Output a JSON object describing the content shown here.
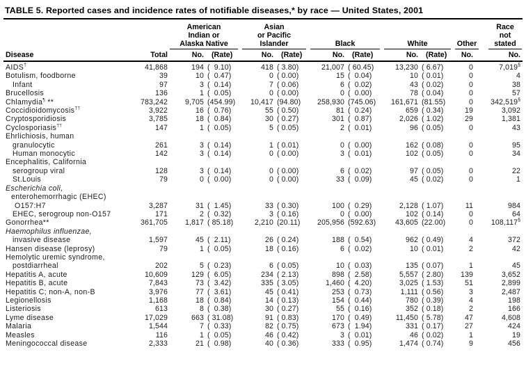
{
  "title": "TABLE 5. Reported cases and incidence rates of notifiable diseases,* by race — United States, 2001",
  "columns": {
    "disease": "Disease",
    "total": "Total",
    "groups": [
      {
        "id": "american-indian-or-alaska-native",
        "lines": [
          "American",
          "Indian or",
          "Alaska Native"
        ],
        "sub": [
          "No.",
          "(Rate)"
        ]
      },
      {
        "id": "asian-or-pacific-islander",
        "lines": [
          "Asian",
          "or Pacific Islander"
        ],
        "sub": [
          "No.",
          "(Rate)"
        ]
      },
      {
        "id": "black",
        "lines": [
          "Black"
        ],
        "sub": [
          "No.",
          "(Rate)"
        ]
      },
      {
        "id": "white",
        "lines": [
          "White"
        ],
        "sub": [
          "No.",
          "(Rate)"
        ]
      },
      {
        "id": "other",
        "lines": [
          "Other"
        ],
        "sub": [
          "No."
        ]
      },
      {
        "id": "race-not-stated",
        "lines": [
          "Race",
          "not",
          "stated"
        ],
        "sub": [
          "No."
        ]
      }
    ]
  },
  "rows": [
    {
      "label": "AIDS",
      "sup": "†",
      "suffix": "",
      "italic": false,
      "indent": 0,
      "total": "41,868",
      "aian_no": "194",
      "aian_rate": "(  9.10)",
      "api_no": "418",
      "api_rate": "( 3.80)",
      "black_no": "21,007",
      "black_rate": "( 60.45)",
      "white_no": "13,230",
      "white_rate": "( 6.67)",
      "other_no": "0",
      "rns_no": "7,019",
      "rns_sup": "§"
    },
    {
      "label": "Botulism, foodborne",
      "sup": "",
      "suffix": "",
      "italic": false,
      "indent": 0,
      "total": "39",
      "aian_no": "10",
      "aian_rate": "(  0.47)",
      "api_no": "0",
      "api_rate": "( 0.00)",
      "black_no": "15",
      "black_rate": "(  0.04)",
      "white_no": "10",
      "white_rate": "( 0.01)",
      "other_no": "0",
      "rns_no": "4",
      "rns_sup": ""
    },
    {
      "label": "Infant",
      "sup": "",
      "suffix": "",
      "italic": false,
      "indent": 10,
      "total": "97",
      "aian_no": "3",
      "aian_rate": "(  0.14)",
      "api_no": "7",
      "api_rate": "( 0.06)",
      "black_no": "6",
      "black_rate": "(  0.02)",
      "white_no": "43",
      "white_rate": "( 0.02)",
      "other_no": "0",
      "rns_no": "38",
      "rns_sup": ""
    },
    {
      "label": "Brucellosis",
      "sup": "",
      "suffix": "",
      "italic": false,
      "indent": 0,
      "total": "136",
      "aian_no": "1",
      "aian_rate": "(  0.05)",
      "api_no": "0",
      "api_rate": "( 0.00)",
      "black_no": "0",
      "black_rate": "(  0.00)",
      "white_no": "78",
      "white_rate": "( 0.04)",
      "other_no": "0",
      "rns_no": "57",
      "rns_sup": ""
    },
    {
      "label": "Chlamydia",
      "sup": "¶",
      "suffix": " **",
      "italic": false,
      "indent": 0,
      "total": "783,242",
      "aian_no": "9,705",
      "aian_rate": "(454.99)",
      "api_no": "10,417",
      "api_rate": "(94.80)",
      "black_no": "258,930",
      "black_rate": "(745.06)",
      "white_no": "161,671",
      "white_rate": "(81.55)",
      "other_no": "0",
      "rns_no": "342,519",
      "rns_sup": "§"
    },
    {
      "label": "Coccidioidomycosis",
      "sup": "††",
      "suffix": "",
      "italic": false,
      "indent": 0,
      "total": "3,922",
      "aian_no": "16",
      "aian_rate": "(  0.76)",
      "api_no": "55",
      "api_rate": "( 0.50)",
      "black_no": "81",
      "black_rate": "(  0.24)",
      "white_no": "659",
      "white_rate": "( 0.34)",
      "other_no": "19",
      "rns_no": "3,092",
      "rns_sup": ""
    },
    {
      "label": "Cryptosporidiosis",
      "sup": "",
      "suffix": "",
      "italic": false,
      "indent": 0,
      "total": "3,785",
      "aian_no": "18",
      "aian_rate": "(  0.84)",
      "api_no": "30",
      "api_rate": "( 0.27)",
      "black_no": "301",
      "black_rate": "(  0.87)",
      "white_no": "2,026",
      "white_rate": "( 1.02)",
      "other_no": "29",
      "rns_no": "1,381",
      "rns_sup": ""
    },
    {
      "label": "Cyclosporiasis",
      "sup": "††",
      "suffix": "",
      "italic": false,
      "indent": 0,
      "total": "147",
      "aian_no": "1",
      "aian_rate": "(  0.05)",
      "api_no": "5",
      "api_rate": "( 0.05)",
      "black_no": "2",
      "black_rate": "(  0.01)",
      "white_no": "96",
      "white_rate": "( 0.05)",
      "other_no": "0",
      "rns_no": "43",
      "rns_sup": ""
    },
    {
      "label": "Ehrlichiosis, human",
      "sup": "",
      "suffix": "",
      "italic": false,
      "indent": 0,
      "total": "",
      "aian_no": "",
      "aian_rate": "",
      "api_no": "",
      "api_rate": "",
      "black_no": "",
      "black_rate": "",
      "white_no": "",
      "white_rate": "",
      "other_no": "",
      "rns_no": "",
      "rns_sup": ""
    },
    {
      "label": "granulocytic",
      "sup": "",
      "suffix": "",
      "italic": false,
      "indent": 10,
      "total": "261",
      "aian_no": "3",
      "aian_rate": "(  0.14)",
      "api_no": "1",
      "api_rate": "( 0.01)",
      "black_no": "0",
      "black_rate": "(  0.00)",
      "white_no": "162",
      "white_rate": "( 0.08)",
      "other_no": "0",
      "rns_no": "95",
      "rns_sup": ""
    },
    {
      "label": "Human monocytic",
      "sup": "",
      "suffix": "",
      "italic": false,
      "indent": 10,
      "total": "142",
      "aian_no": "3",
      "aian_rate": "(  0.14)",
      "api_no": "0",
      "api_rate": "( 0.00)",
      "black_no": "3",
      "black_rate": "(  0.01)",
      "white_no": "102",
      "white_rate": "( 0.05)",
      "other_no": "0",
      "rns_no": "34",
      "rns_sup": ""
    },
    {
      "label": "Encephalitis, California",
      "sup": "",
      "suffix": "",
      "italic": false,
      "indent": 0,
      "total": "",
      "aian_no": "",
      "aian_rate": "",
      "api_no": "",
      "api_rate": "",
      "black_no": "",
      "black_rate": "",
      "white_no": "",
      "white_rate": "",
      "other_no": "",
      "rns_no": "",
      "rns_sup": ""
    },
    {
      "label": "serogroup viral",
      "sup": "",
      "suffix": "",
      "italic": false,
      "indent": 10,
      "total": "128",
      "aian_no": "3",
      "aian_rate": "(  0.14)",
      "api_no": "0",
      "api_rate": "( 0.00)",
      "black_no": "6",
      "black_rate": "(  0.02)",
      "white_no": "97",
      "white_rate": "( 0.05)",
      "other_no": "0",
      "rns_no": "22",
      "rns_sup": ""
    },
    {
      "label": "St.Louis",
      "sup": "",
      "suffix": "",
      "italic": false,
      "indent": 10,
      "total": "79",
      "aian_no": "0",
      "aian_rate": "(  0.00)",
      "api_no": "0",
      "api_rate": "( 0.00)",
      "black_no": "33",
      "black_rate": "(  0.09)",
      "white_no": "45",
      "white_rate": "( 0.02)",
      "other_no": "0",
      "rns_no": "1",
      "rns_sup": ""
    },
    {
      "label": "Escherichia coli,",
      "sup": "",
      "suffix": "",
      "italic": true,
      "indent": 0,
      "total": "",
      "aian_no": "",
      "aian_rate": "",
      "api_no": "",
      "api_rate": "",
      "black_no": "",
      "black_rate": "",
      "white_no": "",
      "white_rate": "",
      "other_no": "",
      "rns_no": "",
      "rns_sup": ""
    },
    {
      "label": "enterohemorrhagic (EHEC)",
      "sup": "",
      "suffix": "",
      "italic": false,
      "indent": 8,
      "total": "",
      "aian_no": "",
      "aian_rate": "",
      "api_no": "",
      "api_rate": "",
      "black_no": "",
      "black_rate": "",
      "white_no": "",
      "white_rate": "",
      "other_no": "",
      "rns_no": "",
      "rns_sup": ""
    },
    {
      "label": "O157:H7",
      "sup": "",
      "suffix": "",
      "italic": false,
      "indent": 13,
      "total": "3,287",
      "aian_no": "31",
      "aian_rate": "(  1.45)",
      "api_no": "33",
      "api_rate": "( 0.30)",
      "black_no": "100",
      "black_rate": "(  0.29)",
      "white_no": "2,128",
      "white_rate": "( 1.07)",
      "other_no": "11",
      "rns_no": "984",
      "rns_sup": ""
    },
    {
      "label": "EHEC, serogroup non-O157",
      "sup": "",
      "suffix": "",
      "italic": false,
      "indent": 10,
      "total": "171",
      "aian_no": "2",
      "aian_rate": "(  0.32)",
      "api_no": "3",
      "api_rate": "( 0.16)",
      "black_no": "0",
      "black_rate": "(  0.00)",
      "white_no": "102",
      "white_rate": "( 0.14)",
      "other_no": "0",
      "rns_no": "64",
      "rns_sup": ""
    },
    {
      "label": "Gonorrhea",
      "sup": "",
      "suffix": "**",
      "italic": false,
      "indent": 0,
      "total": "361,705",
      "aian_no": "1,817",
      "aian_rate": "( 85.18)",
      "api_no": "2,210",
      "api_rate": "(20.11)",
      "black_no": "205,956",
      "black_rate": "(592.63)",
      "white_no": "43,605",
      "white_rate": "(22.00)",
      "other_no": "0",
      "rns_no": "108,117",
      "rns_sup": "§"
    },
    {
      "label": "Haemophilus influenzae,",
      "sup": "",
      "suffix": "",
      "italic": true,
      "indent": 0,
      "total": "",
      "aian_no": "",
      "aian_rate": "",
      "api_no": "",
      "api_rate": "",
      "black_no": "",
      "black_rate": "",
      "white_no": "",
      "white_rate": "",
      "other_no": "",
      "rns_no": "",
      "rns_sup": ""
    },
    {
      "label": "invasive disease",
      "sup": "",
      "suffix": "",
      "italic": false,
      "indent": 10,
      "total": "1,597",
      "aian_no": "45",
      "aian_rate": "(  2.11)",
      "api_no": "26",
      "api_rate": "( 0.24)",
      "black_no": "188",
      "black_rate": "(  0.54)",
      "white_no": "962",
      "white_rate": "( 0.49)",
      "other_no": "4",
      "rns_no": "372",
      "rns_sup": ""
    },
    {
      "label": "Hansen disease (leprosy)",
      "sup": "",
      "suffix": "",
      "italic": false,
      "indent": 0,
      "total": "79",
      "aian_no": "1",
      "aian_rate": "(  0.05)",
      "api_no": "18",
      "api_rate": "( 0.16)",
      "black_no": "6",
      "black_rate": "(  0.02)",
      "white_no": "10",
      "white_rate": "( 0.01)",
      "other_no": "2",
      "rns_no": "42",
      "rns_sup": ""
    },
    {
      "label": "Hemolytic uremic syndrome,",
      "sup": "",
      "suffix": "",
      "italic": false,
      "indent": 0,
      "total": "",
      "aian_no": "",
      "aian_rate": "",
      "api_no": "",
      "api_rate": "",
      "black_no": "",
      "black_rate": "",
      "white_no": "",
      "white_rate": "",
      "other_no": "",
      "rns_no": "",
      "rns_sup": ""
    },
    {
      "label": "postdiarrheal",
      "sup": "",
      "suffix": "",
      "italic": false,
      "indent": 10,
      "total": "202",
      "aian_no": "5",
      "aian_rate": "(  0.23)",
      "api_no": "6",
      "api_rate": "( 0.05)",
      "black_no": "10",
      "black_rate": "(  0.03)",
      "white_no": "135",
      "white_rate": "( 0.07)",
      "other_no": "1",
      "rns_no": "45",
      "rns_sup": ""
    },
    {
      "label": "Hepatitis A, acute",
      "sup": "",
      "suffix": "",
      "italic": false,
      "indent": 0,
      "total": "10,609",
      "aian_no": "129",
      "aian_rate": "(  6.05)",
      "api_no": "234",
      "api_rate": "( 2.13)",
      "black_no": "898",
      "black_rate": "(  2.58)",
      "white_no": "5,557",
      "white_rate": "( 2.80)",
      "other_no": "139",
      "rns_no": "3,652",
      "rns_sup": ""
    },
    {
      "label": "Hepatitis B, acute",
      "sup": "",
      "suffix": "",
      "italic": false,
      "indent": 0,
      "total": "7,843",
      "aian_no": "73",
      "aian_rate": "(  3.42)",
      "api_no": "335",
      "api_rate": "( 3.05)",
      "black_no": "1,460",
      "black_rate": "(  4.20)",
      "white_no": "3,025",
      "white_rate": "( 1.53)",
      "other_no": "51",
      "rns_no": "2,899",
      "rns_sup": ""
    },
    {
      "label": "Hepatitis C; non-A, non-B",
      "sup": "",
      "suffix": "",
      "italic": false,
      "indent": 0,
      "total": "3,976",
      "aian_no": "77",
      "aian_rate": "(  3.61)",
      "api_no": "45",
      "api_rate": "( 0.41)",
      "black_no": "253",
      "black_rate": "(  0.73)",
      "white_no": "1,111",
      "white_rate": "( 0.56)",
      "other_no": "3",
      "rns_no": "2,487",
      "rns_sup": ""
    },
    {
      "label": "Legionellosis",
      "sup": "",
      "suffix": "",
      "italic": false,
      "indent": 0,
      "total": "1,168",
      "aian_no": "18",
      "aian_rate": "(  0.84)",
      "api_no": "14",
      "api_rate": "( 0.13)",
      "black_no": "154",
      "black_rate": "(  0.44)",
      "white_no": "780",
      "white_rate": "( 0.39)",
      "other_no": "4",
      "rns_no": "198",
      "rns_sup": ""
    },
    {
      "label": "Listeriosis",
      "sup": "",
      "suffix": "",
      "italic": false,
      "indent": 0,
      "total": "613",
      "aian_no": "8",
      "aian_rate": "(  0.38)",
      "api_no": "30",
      "api_rate": "( 0.27)",
      "black_no": "55",
      "black_rate": "(  0.16)",
      "white_no": "352",
      "white_rate": "( 0.18)",
      "other_no": "2",
      "rns_no": "166",
      "rns_sup": ""
    },
    {
      "label": "Lyme disease",
      "sup": "",
      "suffix": "",
      "italic": false,
      "indent": 0,
      "total": "17,029",
      "aian_no": "663",
      "aian_rate": "( 31.08)",
      "api_no": "91",
      "api_rate": "( 0.83)",
      "black_no": "170",
      "black_rate": "(  0.49)",
      "white_no": "11,450",
      "white_rate": "( 5.78)",
      "other_no": "47",
      "rns_no": "4,608",
      "rns_sup": ""
    },
    {
      "label": "Malaria",
      "sup": "",
      "suffix": "",
      "italic": false,
      "indent": 0,
      "total": "1,544",
      "aian_no": "7",
      "aian_rate": "(  0.33)",
      "api_no": "82",
      "api_rate": "( 0.75)",
      "black_no": "673",
      "black_rate": "(  1.94)",
      "white_no": "331",
      "white_rate": "( 0.17)",
      "other_no": "27",
      "rns_no": "424",
      "rns_sup": ""
    },
    {
      "label": "Measles",
      "sup": "",
      "suffix": "",
      "italic": false,
      "indent": 0,
      "total": "116",
      "aian_no": "1",
      "aian_rate": "(  0.05)",
      "api_no": "46",
      "api_rate": "( 0.42)",
      "black_no": "3",
      "black_rate": "(  0.01)",
      "white_no": "46",
      "white_rate": "( 0.02)",
      "other_no": "1",
      "rns_no": "19",
      "rns_sup": ""
    },
    {
      "label": "Meningococcal disease",
      "sup": "",
      "suffix": "",
      "italic": false,
      "indent": 0,
      "total": "2,333",
      "aian_no": "21",
      "aian_rate": "(  0.98)",
      "api_no": "40",
      "api_rate": "( 0.36)",
      "black_no": "333",
      "black_rate": "(  0.95)",
      "white_no": "1,474",
      "white_rate": "( 0.74)",
      "other_no": "9",
      "rns_no": "456",
      "rns_sup": ""
    }
  ]
}
